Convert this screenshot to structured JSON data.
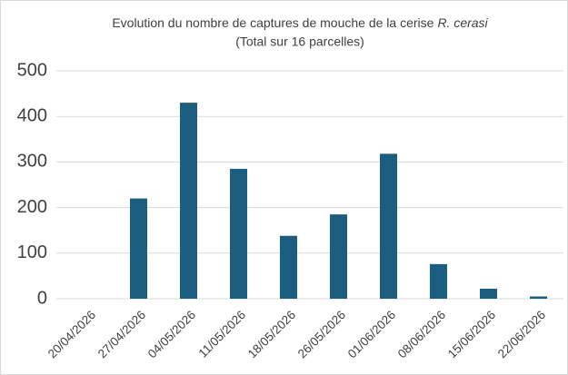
{
  "chart_data": {
    "type": "bar",
    "title": [
      "Evolution du nombre de captures de mouche de la cerise",
      "R. cerasi"
    ],
    "subtitle": "(Total sur 16 parcelles)",
    "categories": [
      "20/04/2026",
      "27/04/2026",
      "04/05/2026",
      "11/05/2026",
      "18/05/2026",
      "26/05/2026",
      "01/06/2026",
      "08/06/2026",
      "15/06/2026",
      "22/06/2026"
    ],
    "values": [
      0,
      220,
      430,
      285,
      138,
      185,
      318,
      76,
      22,
      5
    ],
    "color": "#1b5e80",
    "ylim": [
      0,
      500
    ],
    "yticks": [
      0,
      100,
      200,
      300,
      400,
      500
    ],
    "grid": true
  }
}
